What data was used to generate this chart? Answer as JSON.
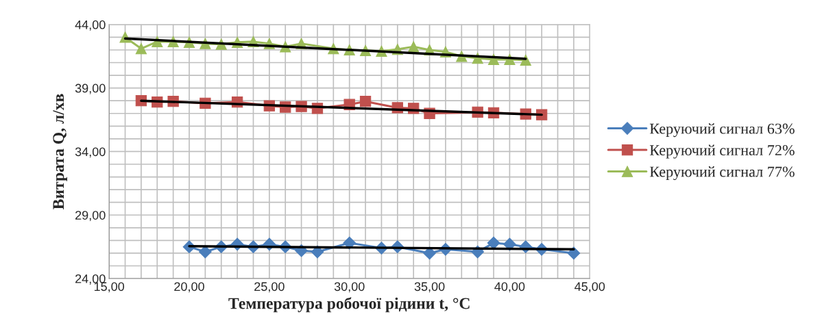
{
  "chart_data": {
    "type": "line",
    "xlabel": "Температура робочої рідини t, °C",
    "ylabel": "Витрата Q, л/хв",
    "xlim": [
      15,
      45
    ],
    "ylim": [
      24,
      44
    ],
    "xticks": [
      {
        "value": 15,
        "label": "15,00"
      },
      {
        "value": 16,
        "label": null
      },
      {
        "value": 17,
        "label": null
      },
      {
        "value": 18,
        "label": null
      },
      {
        "value": 19,
        "label": null
      },
      {
        "value": 20,
        "label": "20,00"
      },
      {
        "value": 21,
        "label": null
      },
      {
        "value": 22,
        "label": null
      },
      {
        "value": 23,
        "label": null
      },
      {
        "value": 24,
        "label": null
      },
      {
        "value": 25,
        "label": "25,00"
      },
      {
        "value": 26,
        "label": null
      },
      {
        "value": 27,
        "label": null
      },
      {
        "value": 28,
        "label": null
      },
      {
        "value": 29,
        "label": null
      },
      {
        "value": 30,
        "label": "30,00"
      },
      {
        "value": 31,
        "label": null
      },
      {
        "value": 32,
        "label": null
      },
      {
        "value": 33,
        "label": null
      },
      {
        "value": 34,
        "label": null
      },
      {
        "value": 35,
        "label": "35,00"
      },
      {
        "value": 36,
        "label": null
      },
      {
        "value": 37,
        "label": null
      },
      {
        "value": 38,
        "label": null
      },
      {
        "value": 39,
        "label": null
      },
      {
        "value": 40,
        "label": "40,00"
      },
      {
        "value": 41,
        "label": null
      },
      {
        "value": 42,
        "label": null
      },
      {
        "value": 43,
        "label": null
      },
      {
        "value": 44,
        "label": null
      },
      {
        "value": 45,
        "label": "45,00"
      }
    ],
    "yticks": [
      {
        "value": 24,
        "label": "24,00"
      },
      {
        "value": 25,
        "label": null
      },
      {
        "value": 26,
        "label": null
      },
      {
        "value": 27,
        "label": null
      },
      {
        "value": 28,
        "label": null
      },
      {
        "value": 29,
        "label": "29,00"
      },
      {
        "value": 30,
        "label": null
      },
      {
        "value": 31,
        "label": null
      },
      {
        "value": 32,
        "label": null
      },
      {
        "value": 33,
        "label": null
      },
      {
        "value": 34,
        "label": "34,00"
      },
      {
        "value": 35,
        "label": null
      },
      {
        "value": 36,
        "label": null
      },
      {
        "value": 37,
        "label": null
      },
      {
        "value": 38,
        "label": null
      },
      {
        "value": 39,
        "label": "39,00"
      },
      {
        "value": 40,
        "label": null
      },
      {
        "value": 41,
        "label": null
      },
      {
        "value": 42,
        "label": null
      },
      {
        "value": 43,
        "label": null
      },
      {
        "value": 44,
        "label": "44,00"
      }
    ],
    "grid": true,
    "legend": "right",
    "series": [
      {
        "name": "Керуючий сигнал 63%",
        "color": "#4a7ebb",
        "marker": "diamond",
        "x": [
          20,
          21,
          22,
          23,
          24,
          25,
          26,
          27,
          28,
          30,
          32,
          33,
          35,
          36,
          38,
          39,
          40,
          41,
          42,
          44
        ],
        "values": [
          26.5,
          26.1,
          26.5,
          26.7,
          26.5,
          26.7,
          26.5,
          26.2,
          26.1,
          26.8,
          26.4,
          26.5,
          26.0,
          26.3,
          26.1,
          26.8,
          26.7,
          26.5,
          26.3,
          26.0
        ]
      },
      {
        "name": "Керуючий сигнал 72%",
        "color": "#c0504d",
        "marker": "square",
        "x": [
          17,
          18,
          19,
          21,
          23,
          25,
          26,
          27,
          28,
          30,
          31,
          33,
          34,
          35,
          38,
          39,
          41,
          42
        ],
        "values": [
          38.0,
          37.9,
          37.95,
          37.8,
          37.9,
          37.6,
          37.5,
          37.55,
          37.4,
          37.7,
          37.95,
          37.45,
          37.4,
          37.0,
          37.1,
          37.05,
          36.95,
          36.9
        ]
      },
      {
        "name": "Керуючий сигнал 77%",
        "color": "#9bbb59",
        "marker": "triangle",
        "x": [
          16,
          17,
          18,
          19,
          20,
          21,
          22,
          23,
          24,
          25,
          26,
          27,
          29,
          30,
          31,
          32,
          33,
          34,
          35,
          36,
          37,
          38,
          39,
          40,
          41
        ],
        "values": [
          43.0,
          42.1,
          42.65,
          42.65,
          42.6,
          42.5,
          42.45,
          42.6,
          42.65,
          42.5,
          42.25,
          42.5,
          42.1,
          42.0,
          41.95,
          41.9,
          42.05,
          42.25,
          42.0,
          41.85,
          41.5,
          41.35,
          41.25,
          41.25,
          41.2
        ]
      },
      {
        "type": "line",
        "color": "#000000",
        "marker": "none",
        "x": [
          20,
          44
        ],
        "values": [
          26.55,
          26.3
        ]
      },
      {
        "type": "line",
        "color": "#000000",
        "marker": "none",
        "x": [
          17,
          42
        ],
        "values": [
          38.0,
          36.9
        ]
      },
      {
        "type": "line",
        "color": "#000000",
        "marker": "none",
        "x": [
          16,
          41
        ],
        "values": [
          42.9,
          41.3
        ]
      }
    ]
  }
}
